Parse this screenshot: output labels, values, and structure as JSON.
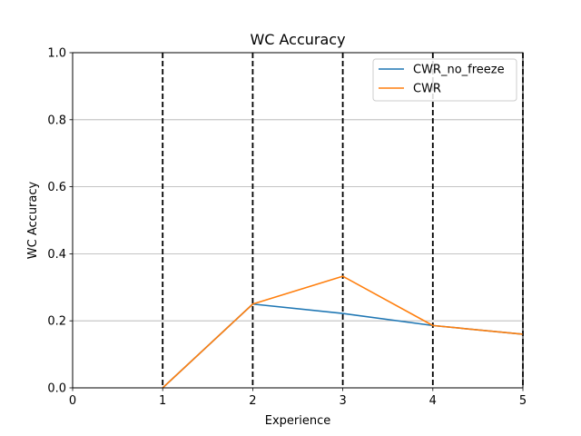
{
  "chart_data": {
    "type": "line",
    "title": "WC Accuracy",
    "xlabel": "Experience",
    "ylabel": "WC Accuracy",
    "xlim": [
      0,
      5
    ],
    "ylim": [
      0,
      1.0
    ],
    "x_ticks": [
      "0",
      "1",
      "2",
      "3",
      "4",
      "5"
    ],
    "y_ticks": [
      "0.0",
      "0.2",
      "0.4",
      "0.6",
      "0.8",
      "1.0"
    ],
    "grid": "horizontal",
    "vertical_markers": [
      1,
      2,
      3,
      4,
      5
    ],
    "legend_position": "top-right",
    "series": [
      {
        "name": "CWR_no_freeze",
        "color": "#1f77b4",
        "x": [
          1,
          2,
          3,
          4,
          5
        ],
        "values": [
          0.0,
          0.25,
          0.222,
          0.186,
          0.16
        ]
      },
      {
        "name": "CWR",
        "color": "#ff7f0e",
        "x": [
          1,
          2,
          3,
          4,
          5
        ],
        "values": [
          0.0,
          0.25,
          0.333,
          0.186,
          0.16
        ]
      }
    ]
  }
}
